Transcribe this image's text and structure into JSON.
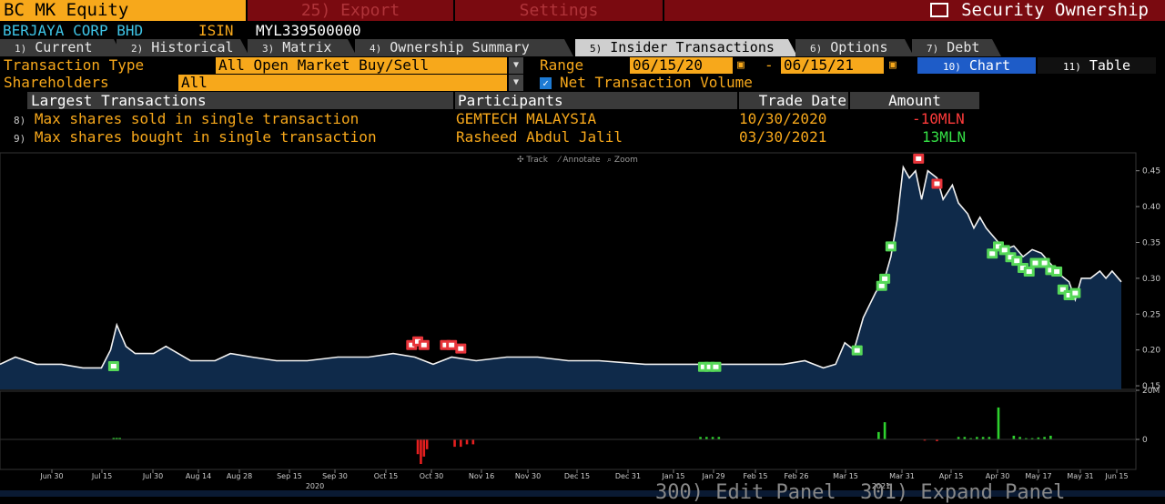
{
  "top_bar": {
    "ticker": "BC MK Equity",
    "export_label": "25) Export",
    "settings_label": "Settings",
    "title": "Security Ownership"
  },
  "company": {
    "name": "BERJAYA CORP BHD",
    "isin_label": "ISIN",
    "isin": "MYL339500000"
  },
  "tabs": [
    {
      "num": "1)",
      "label": "Current"
    },
    {
      "num": "2)",
      "label": "Historical"
    },
    {
      "num": "3)",
      "label": "Matrix"
    },
    {
      "num": "4)",
      "label": "Ownership Summary"
    },
    {
      "num": "5)",
      "label": "Insider Transactions"
    },
    {
      "num": "6)",
      "label": "Options"
    },
    {
      "num": "7)",
      "label": "Debt"
    }
  ],
  "active_tab": "Insider Transactions",
  "controls": {
    "transaction_type_label": "Transaction Type",
    "transaction_type_value": "All Open Market Buy/Sell",
    "range_label": "Range",
    "range_start": "06/15/20",
    "range_dash": "-",
    "range_end": "06/15/21",
    "shareholders_label": "Shareholders",
    "shareholders_value": "All",
    "net_volume_label": "Net Transaction Volume",
    "net_volume_checked": true,
    "chart_num": "10)",
    "chart_label": "Chart",
    "table_num": "11)",
    "table_label": "Table"
  },
  "table": {
    "headers": [
      "Largest Transactions",
      "Participants",
      "Trade Date",
      "Amount"
    ],
    "rows": [
      {
        "num": "8)",
        "desc": "Max shares sold in single transaction",
        "participant": "GEMTECH MALAYSIA",
        "date": "10/30/2020",
        "amount": "-10MLN",
        "amount_color": "#ff3b3b"
      },
      {
        "num": "9)",
        "desc": "Max shares bought in single transaction",
        "participant": "Rasheed Abdul Jalil",
        "date": "03/30/2021",
        "amount": "13MLN",
        "amount_color": "#35e046"
      }
    ]
  },
  "chart_toolbar": [
    "Track",
    "Annotate",
    "Zoom"
  ],
  "chart_data": {
    "type": "line",
    "price_axis_ticks": [
      "0.45",
      "0.40",
      "0.35",
      "0.30",
      "0.25",
      "0.20",
      "0.15"
    ],
    "volume_axis_ticks": [
      "20M",
      "0"
    ],
    "x_tick_labels": [
      "Jun 30",
      "Jul 15",
      "Jul 30",
      "Aug 14",
      "Aug 28",
      "Sep 15",
      "Sep 30",
      "Oct 15",
      "Oct 30",
      "Nov 16",
      "Nov 30",
      "Dec 15",
      "Dec 31",
      "Jan 15",
      "Jan 29",
      "Feb 15",
      "Feb 26",
      "Mar 15",
      "Mar 31",
      "Apr 15",
      "Apr 30",
      "May 17",
      "May 31",
      "Jun 15"
    ],
    "year_labels": [
      "2020",
      "2021"
    ],
    "ylim": [
      0.145,
      0.475
    ],
    "price_series": [
      {
        "d": 0,
        "p": 0.18
      },
      {
        "d": 5,
        "p": 0.19
      },
      {
        "d": 12,
        "p": 0.18
      },
      {
        "d": 20,
        "p": 0.18
      },
      {
        "d": 27,
        "p": 0.175
      },
      {
        "d": 33,
        "p": 0.175
      },
      {
        "d": 36,
        "p": 0.2
      },
      {
        "d": 38,
        "p": 0.235
      },
      {
        "d": 41,
        "p": 0.205
      },
      {
        "d": 44,
        "p": 0.195
      },
      {
        "d": 50,
        "p": 0.195
      },
      {
        "d": 54,
        "p": 0.205
      },
      {
        "d": 58,
        "p": 0.195
      },
      {
        "d": 62,
        "p": 0.185
      },
      {
        "d": 70,
        "p": 0.185
      },
      {
        "d": 75,
        "p": 0.195
      },
      {
        "d": 82,
        "p": 0.19
      },
      {
        "d": 90,
        "p": 0.185
      },
      {
        "d": 100,
        "p": 0.185
      },
      {
        "d": 110,
        "p": 0.19
      },
      {
        "d": 120,
        "p": 0.19
      },
      {
        "d": 128,
        "p": 0.195
      },
      {
        "d": 135,
        "p": 0.19
      },
      {
        "d": 141,
        "p": 0.18
      },
      {
        "d": 147,
        "p": 0.19
      },
      {
        "d": 155,
        "p": 0.185
      },
      {
        "d": 165,
        "p": 0.19
      },
      {
        "d": 175,
        "p": 0.19
      },
      {
        "d": 185,
        "p": 0.185
      },
      {
        "d": 195,
        "p": 0.185
      },
      {
        "d": 210,
        "p": 0.18
      },
      {
        "d": 225,
        "p": 0.18
      },
      {
        "d": 240,
        "p": 0.18
      },
      {
        "d": 255,
        "p": 0.18
      },
      {
        "d": 262,
        "p": 0.185
      },
      {
        "d": 268,
        "p": 0.175
      },
      {
        "d": 272,
        "p": 0.18
      },
      {
        "d": 275,
        "p": 0.21
      },
      {
        "d": 278,
        "p": 0.2
      },
      {
        "d": 281,
        "p": 0.245
      },
      {
        "d": 285,
        "p": 0.28
      },
      {
        "d": 288,
        "p": 0.3
      },
      {
        "d": 290,
        "p": 0.33
      },
      {
        "d": 292,
        "p": 0.38
      },
      {
        "d": 294,
        "p": 0.455
      },
      {
        "d": 296,
        "p": 0.44
      },
      {
        "d": 298,
        "p": 0.45
      },
      {
        "d": 300,
        "p": 0.41
      },
      {
        "d": 302,
        "p": 0.45
      },
      {
        "d": 305,
        "p": 0.44
      },
      {
        "d": 307,
        "p": 0.41
      },
      {
        "d": 310,
        "p": 0.43
      },
      {
        "d": 312,
        "p": 0.405
      },
      {
        "d": 315,
        "p": 0.39
      },
      {
        "d": 317,
        "p": 0.37
      },
      {
        "d": 319,
        "p": 0.385
      },
      {
        "d": 321,
        "p": 0.37
      },
      {
        "d": 324,
        "p": 0.355
      },
      {
        "d": 327,
        "p": 0.34
      },
      {
        "d": 330,
        "p": 0.345
      },
      {
        "d": 333,
        "p": 0.33
      },
      {
        "d": 336,
        "p": 0.34
      },
      {
        "d": 339,
        "p": 0.335
      },
      {
        "d": 342,
        "p": 0.32
      },
      {
        "d": 345,
        "p": 0.305
      },
      {
        "d": 348,
        "p": 0.295
      },
      {
        "d": 350,
        "p": 0.27
      },
      {
        "d": 352,
        "p": 0.3
      },
      {
        "d": 355,
        "p": 0.3
      },
      {
        "d": 358,
        "p": 0.31
      },
      {
        "d": 360,
        "p": 0.3
      },
      {
        "d": 362,
        "p": 0.31
      },
      {
        "d": 365,
        "p": 0.295
      }
    ],
    "volume_series": [
      {
        "d": 37,
        "v": 0.6
      },
      {
        "d": 38,
        "v": 0.6
      },
      {
        "d": 39,
        "v": 0.6
      },
      {
        "d": 136,
        "v": -6
      },
      {
        "d": 137,
        "v": -10
      },
      {
        "d": 138,
        "v": -7
      },
      {
        "d": 139,
        "v": -4
      },
      {
        "d": 148,
        "v": -3
      },
      {
        "d": 150,
        "v": -3
      },
      {
        "d": 152,
        "v": -2
      },
      {
        "d": 154,
        "v": -2
      },
      {
        "d": 228,
        "v": 1
      },
      {
        "d": 230,
        "v": 1
      },
      {
        "d": 232,
        "v": 1
      },
      {
        "d": 234,
        "v": 1
      },
      {
        "d": 286,
        "v": 3
      },
      {
        "d": 288,
        "v": 7
      },
      {
        "d": 301,
        "v": -0.5
      },
      {
        "d": 305,
        "v": -0.7
      },
      {
        "d": 312,
        "v": 1
      },
      {
        "d": 314,
        "v": 1
      },
      {
        "d": 316,
        "v": 0.5
      },
      {
        "d": 318,
        "v": 1
      },
      {
        "d": 320,
        "v": 1
      },
      {
        "d": 322,
        "v": 1
      },
      {
        "d": 325,
        "v": 13
      },
      {
        "d": 330,
        "v": 1.5
      },
      {
        "d": 332,
        "v": 1
      },
      {
        "d": 334,
        "v": 0.5
      },
      {
        "d": 336,
        "v": 0.5
      },
      {
        "d": 338,
        "v": 0.8
      },
      {
        "d": 340,
        "v": 1
      },
      {
        "d": 342,
        "v": 1.5
      }
    ],
    "buy_markers": [
      {
        "d": 37,
        "p": 0.178
      },
      {
        "d": 229,
        "p": 0.177
      },
      {
        "d": 231,
        "p": 0.177
      },
      {
        "d": 233,
        "p": 0.177
      },
      {
        "d": 279,
        "p": 0.2
      },
      {
        "d": 287,
        "p": 0.29
      },
      {
        "d": 288,
        "p": 0.3
      },
      {
        "d": 290,
        "p": 0.345
      },
      {
        "d": 323,
        "p": 0.335
      },
      {
        "d": 325,
        "p": 0.345
      },
      {
        "d": 327,
        "p": 0.34
      },
      {
        "d": 329,
        "p": 0.33
      },
      {
        "d": 331,
        "p": 0.325
      },
      {
        "d": 333,
        "p": 0.315
      },
      {
        "d": 335,
        "p": 0.31
      },
      {
        "d": 337,
        "p": 0.322
      },
      {
        "d": 340,
        "p": 0.322
      },
      {
        "d": 342,
        "p": 0.312
      },
      {
        "d": 344,
        "p": 0.31
      },
      {
        "d": 346,
        "p": 0.285
      },
      {
        "d": 348,
        "p": 0.277
      },
      {
        "d": 350,
        "p": 0.28
      }
    ],
    "sell_markers": [
      {
        "d": 134,
        "p": 0.205
      },
      {
        "d": 136,
        "p": 0.21
      },
      {
        "d": 138,
        "p": 0.205
      },
      {
        "d": 145,
        "p": 0.205
      },
      {
        "d": 147,
        "p": 0.205
      },
      {
        "d": 150,
        "p": 0.2
      },
      {
        "d": 299,
        "p": 0.465
      },
      {
        "d": 305,
        "p": 0.43
      }
    ]
  },
  "bottom_hint": "300) Edit Panel  301) Expand Panel"
}
